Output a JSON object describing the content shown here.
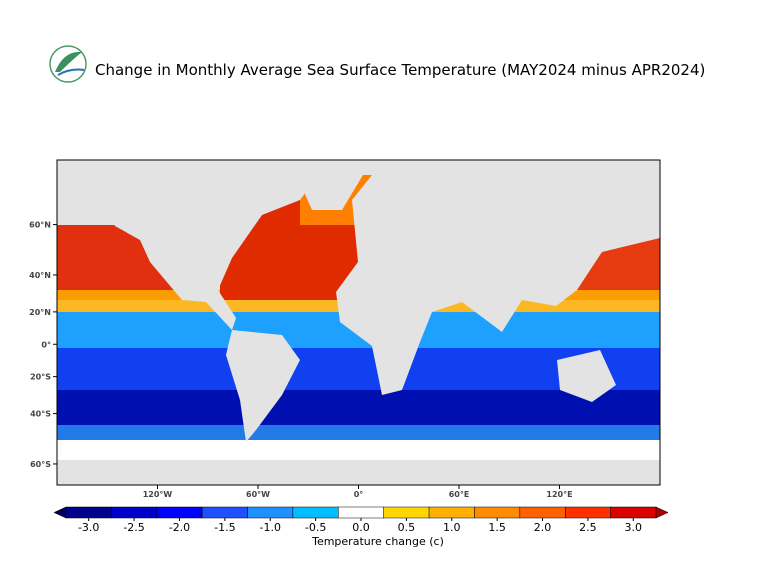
{
  "title": "Change in Monthly Average Sea Surface Temperature (MAY2024 minus APR2024)",
  "map": {
    "xlim": [
      -180,
      180
    ],
    "ylim": [
      -66,
      75
    ],
    "projection": "mercator",
    "xticks": [
      {
        "value": -120,
        "label": "120°W"
      },
      {
        "value": -60,
        "label": "60°W"
      },
      {
        "value": 0,
        "label": "0°"
      },
      {
        "value": 60,
        "label": "60°E"
      },
      {
        "value": 120,
        "label": "120°E"
      }
    ],
    "yticks": [
      {
        "value": 60,
        "label": "60°N"
      },
      {
        "value": 40,
        "label": "40°N"
      },
      {
        "value": 20,
        "label": "20°N"
      },
      {
        "value": 0,
        "label": "0°"
      },
      {
        "value": -20,
        "label": "20°S"
      },
      {
        "value": -40,
        "label": "40°S"
      },
      {
        "value": -60,
        "label": "60°S"
      }
    ]
  },
  "colorbar": {
    "label": "Temperature change  (c)",
    "under_color": "#00005a",
    "over_color": "#b00000",
    "ticks": [
      {
        "value": -3,
        "label": "-3.0"
      },
      {
        "value": -2.5,
        "label": "-2.5"
      },
      {
        "value": -2,
        "label": "-2.0"
      },
      {
        "value": -1.5,
        "label": "-1.5"
      },
      {
        "value": -1,
        "label": "-1.0"
      },
      {
        "value": -0.5,
        "label": "-0.5"
      },
      {
        "value": 0,
        "label": "0.0"
      },
      {
        "value": 0.5,
        "label": "0.5"
      },
      {
        "value": 1,
        "label": "1.0"
      },
      {
        "value": 1.5,
        "label": "1.5"
      },
      {
        "value": 2,
        "label": "2.0"
      },
      {
        "value": 2.5,
        "label": "2.5"
      },
      {
        "value": 3,
        "label": "3.0"
      }
    ],
    "colors": [
      "#00008b",
      "#0000cd",
      "#0000ff",
      "#1e50ff",
      "#1e90ff",
      "#00bfff",
      "#ffffff",
      "#ffd700",
      "#ffb000",
      "#ff8c00",
      "#ff6000",
      "#ff3000",
      "#dc0000"
    ]
  }
}
